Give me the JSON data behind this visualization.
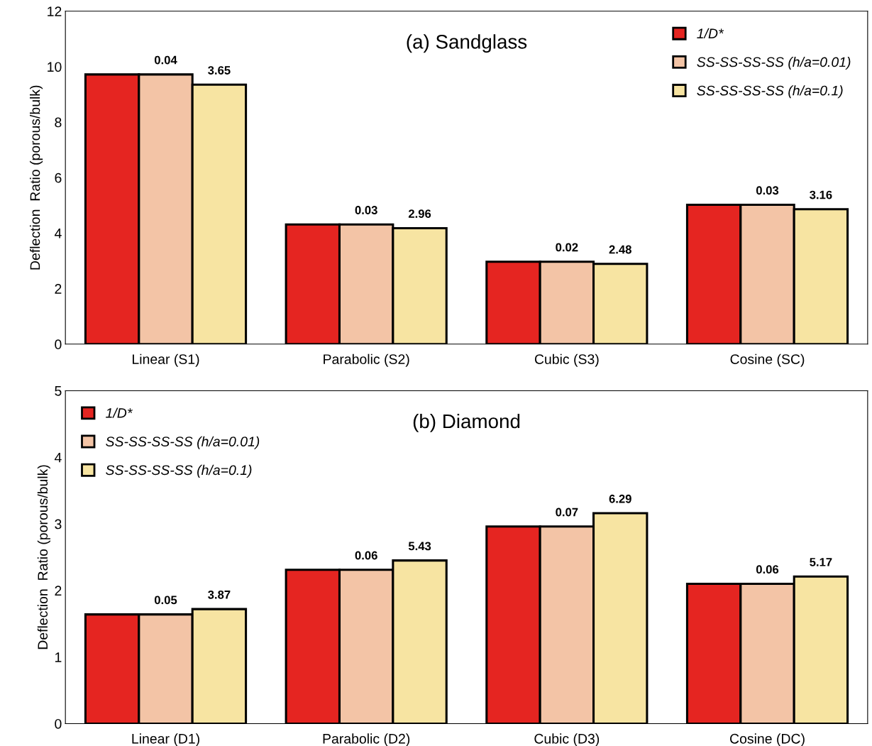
{
  "chart_data": [
    {
      "type": "bar",
      "title": "(a) Sandglass",
      "ylabel": "Deflection  Ratio (porous/bulk)",
      "categories": [
        "Linear (S1)",
        "Parabolic (S2)",
        "Cubic (S3)",
        "Cosine (SC)"
      ],
      "ylim": [
        0,
        12
      ],
      "yticks": [
        0,
        2,
        4,
        6,
        8,
        10,
        12
      ],
      "grid": false,
      "legend": "top right",
      "series": [
        {
          "name": "1/D*",
          "color": "#e52521",
          "values": [
            9.72,
            4.31,
            2.97,
            5.02
          ]
        },
        {
          "name": "SS-SS-SS-SS (h/a=0.01)",
          "color": "#f3c4a6",
          "values": [
            9.72,
            4.31,
            2.97,
            5.02
          ]
        },
        {
          "name": "SS-SS-SS-SS (h/a=0.1)",
          "color": "#f7e4a2",
          "values": [
            9.35,
            4.18,
            2.89,
            4.86
          ]
        }
      ],
      "annotations": [
        "0.04",
        "3.65",
        "0.03",
        "2.96",
        "0.02",
        "2.48",
        "0.03",
        "3.16"
      ]
    },
    {
      "type": "bar",
      "title": "(b) Diamond",
      "ylabel": "Deflection  Ratio (porous/bulk)",
      "categories": [
        "Linear (D1)",
        "Parabolic (D2)",
        "Cubic (D3)",
        "Cosine (DC)"
      ],
      "ylim": [
        0,
        5
      ],
      "yticks": [
        0,
        1,
        2,
        3,
        4,
        5
      ],
      "grid": false,
      "legend": "top left",
      "series": [
        {
          "name": "1/D*",
          "color": "#e52521",
          "values": [
            1.64,
            2.31,
            2.96,
            2.1
          ]
        },
        {
          "name": "SS-SS-SS-SS (h/a=0.01)",
          "color": "#f3c4a6",
          "values": [
            1.64,
            2.31,
            2.96,
            2.1
          ]
        },
        {
          "name": "SS-SS-SS-SS (h/a=0.1)",
          "color": "#f7e4a2",
          "values": [
            1.72,
            2.45,
            3.16,
            2.21
          ]
        }
      ],
      "annotations": [
        "0.05",
        "3.87",
        "0.06",
        "5.43",
        "0.07",
        "6.29",
        "0.06",
        "5.17"
      ]
    }
  ]
}
